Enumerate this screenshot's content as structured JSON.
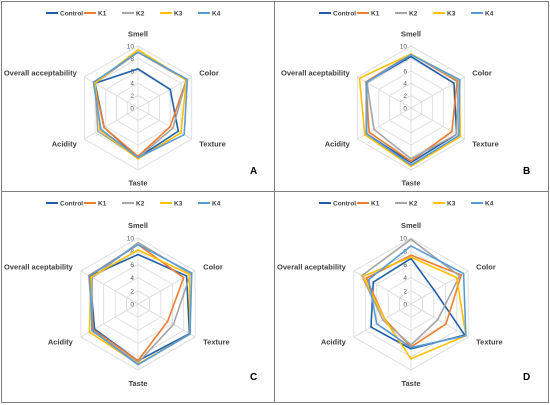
{
  "chart_data": [
    {
      "type": "radar",
      "panel_label": "A",
      "axes": [
        "Smell",
        "Color",
        "Texture",
        "Taste",
        "Acidity",
        "Overall acceptability"
      ],
      "ticks": [
        0,
        2,
        4,
        6,
        8,
        10
      ],
      "range": [
        0,
        10
      ],
      "legend": "top",
      "series": [
        {
          "name": "Control",
          "color": "#1f5fa8",
          "values": [
            6.3,
            6.0,
            7.5,
            8.0,
            6.3,
            8.0
          ]
        },
        {
          "name": "K1",
          "color": "#ed7d31",
          "values": [
            9.0,
            9.0,
            6.0,
            7.8,
            6.3,
            8.2
          ]
        },
        {
          "name": "K2",
          "color": "#a5a5a5",
          "values": [
            9.0,
            9.0,
            6.5,
            8.0,
            7.5,
            8.0
          ]
        },
        {
          "name": "K3",
          "color": "#ffc000",
          "values": [
            9.4,
            9.0,
            8.0,
            8.2,
            7.1,
            8.0
          ]
        },
        {
          "name": "K4",
          "color": "#5b9bd5",
          "values": [
            9.0,
            9.2,
            8.6,
            8.0,
            6.9,
            8.3
          ]
        }
      ]
    },
    {
      "type": "radar",
      "panel_label": "B",
      "axes": [
        "Smell",
        "Color",
        "Texture",
        "Taste",
        "Acidity",
        "Overall aceptability"
      ],
      "ticks": [
        0,
        2,
        4,
        6,
        8,
        10
      ],
      "range": [
        0,
        10
      ],
      "legend": "top",
      "series": [
        {
          "name": "Control",
          "color": "#1f5fa8",
          "values": [
            8.3,
            8.0,
            8.5,
            8.8,
            8.3,
            8.3
          ]
        },
        {
          "name": "K1",
          "color": "#ed7d31",
          "values": [
            8.7,
            8.6,
            7.6,
            8.6,
            7.8,
            8.4
          ]
        },
        {
          "name": "K2",
          "color": "#a5a5a5",
          "values": [
            8.7,
            8.8,
            8.5,
            8.2,
            6.9,
            8.2
          ]
        },
        {
          "name": "K3",
          "color": "#ffc000",
          "values": [
            8.7,
            9.0,
            9.2,
            9.4,
            8.6,
            9.6
          ]
        },
        {
          "name": "K4",
          "color": "#5b9bd5",
          "values": [
            8.6,
            9.1,
            8.9,
            9.2,
            8.3,
            8.3
          ]
        }
      ]
    },
    {
      "type": "radar",
      "panel_label": "C",
      "axes": [
        "Smell",
        "Color",
        "Texture",
        "Taste",
        "Acidity",
        "Overall aceptability"
      ],
      "ticks": [
        0,
        2,
        4,
        6,
        8,
        10
      ],
      "range": [
        0,
        10
      ],
      "legend": "top",
      "series": [
        {
          "name": "Control",
          "color": "#1f5fa8",
          "values": [
            7.5,
            8.5,
            9.0,
            8.6,
            7.6,
            8.4
          ]
        },
        {
          "name": "K1",
          "color": "#ed7d31",
          "values": [
            9.0,
            8.0,
            5.2,
            8.6,
            7.8,
            8.6
          ]
        },
        {
          "name": "K2",
          "color": "#a5a5a5",
          "values": [
            9.3,
            9.2,
            6.2,
            8.9,
            8.1,
            8.0
          ]
        },
        {
          "name": "K3",
          "color": "#ffc000",
          "values": [
            8.2,
            9.0,
            9.1,
            9.1,
            8.5,
            8.2
          ]
        },
        {
          "name": "K4",
          "color": "#5b9bd5",
          "values": [
            9.0,
            9.4,
            9.1,
            9.2,
            8.0,
            8.5
          ]
        }
      ]
    },
    {
      "type": "radar",
      "panel_label": "D",
      "axes": [
        "Smell",
        "Color",
        "Texture",
        "Taste",
        "Acidity",
        "Overall aceptability"
      ],
      "ticks": [
        0,
        2,
        4,
        6,
        8,
        10
      ],
      "range": [
        0,
        10
      ],
      "legend": "top",
      "series": [
        {
          "name": "Control",
          "color": "#1f5fa8",
          "values": [
            6.9,
            4.1,
            9.4,
            6.8,
            7.0,
            6.6
          ]
        },
        {
          "name": "K1",
          "color": "#ed7d31",
          "values": [
            7.4,
            8.8,
            6.1,
            6.5,
            4.6,
            7.8
          ]
        },
        {
          "name": "K2",
          "color": "#a5a5a5",
          "values": [
            9.8,
            8.5,
            4.7,
            6.2,
            4.9,
            8.6
          ]
        },
        {
          "name": "K3",
          "color": "#ffc000",
          "values": [
            7.1,
            8.0,
            9.6,
            8.3,
            4.6,
            8.4
          ]
        },
        {
          "name": "K4",
          "color": "#5b9bd5",
          "values": [
            8.8,
            9.2,
            9.6,
            6.6,
            6.0,
            7.4
          ]
        }
      ]
    }
  ]
}
